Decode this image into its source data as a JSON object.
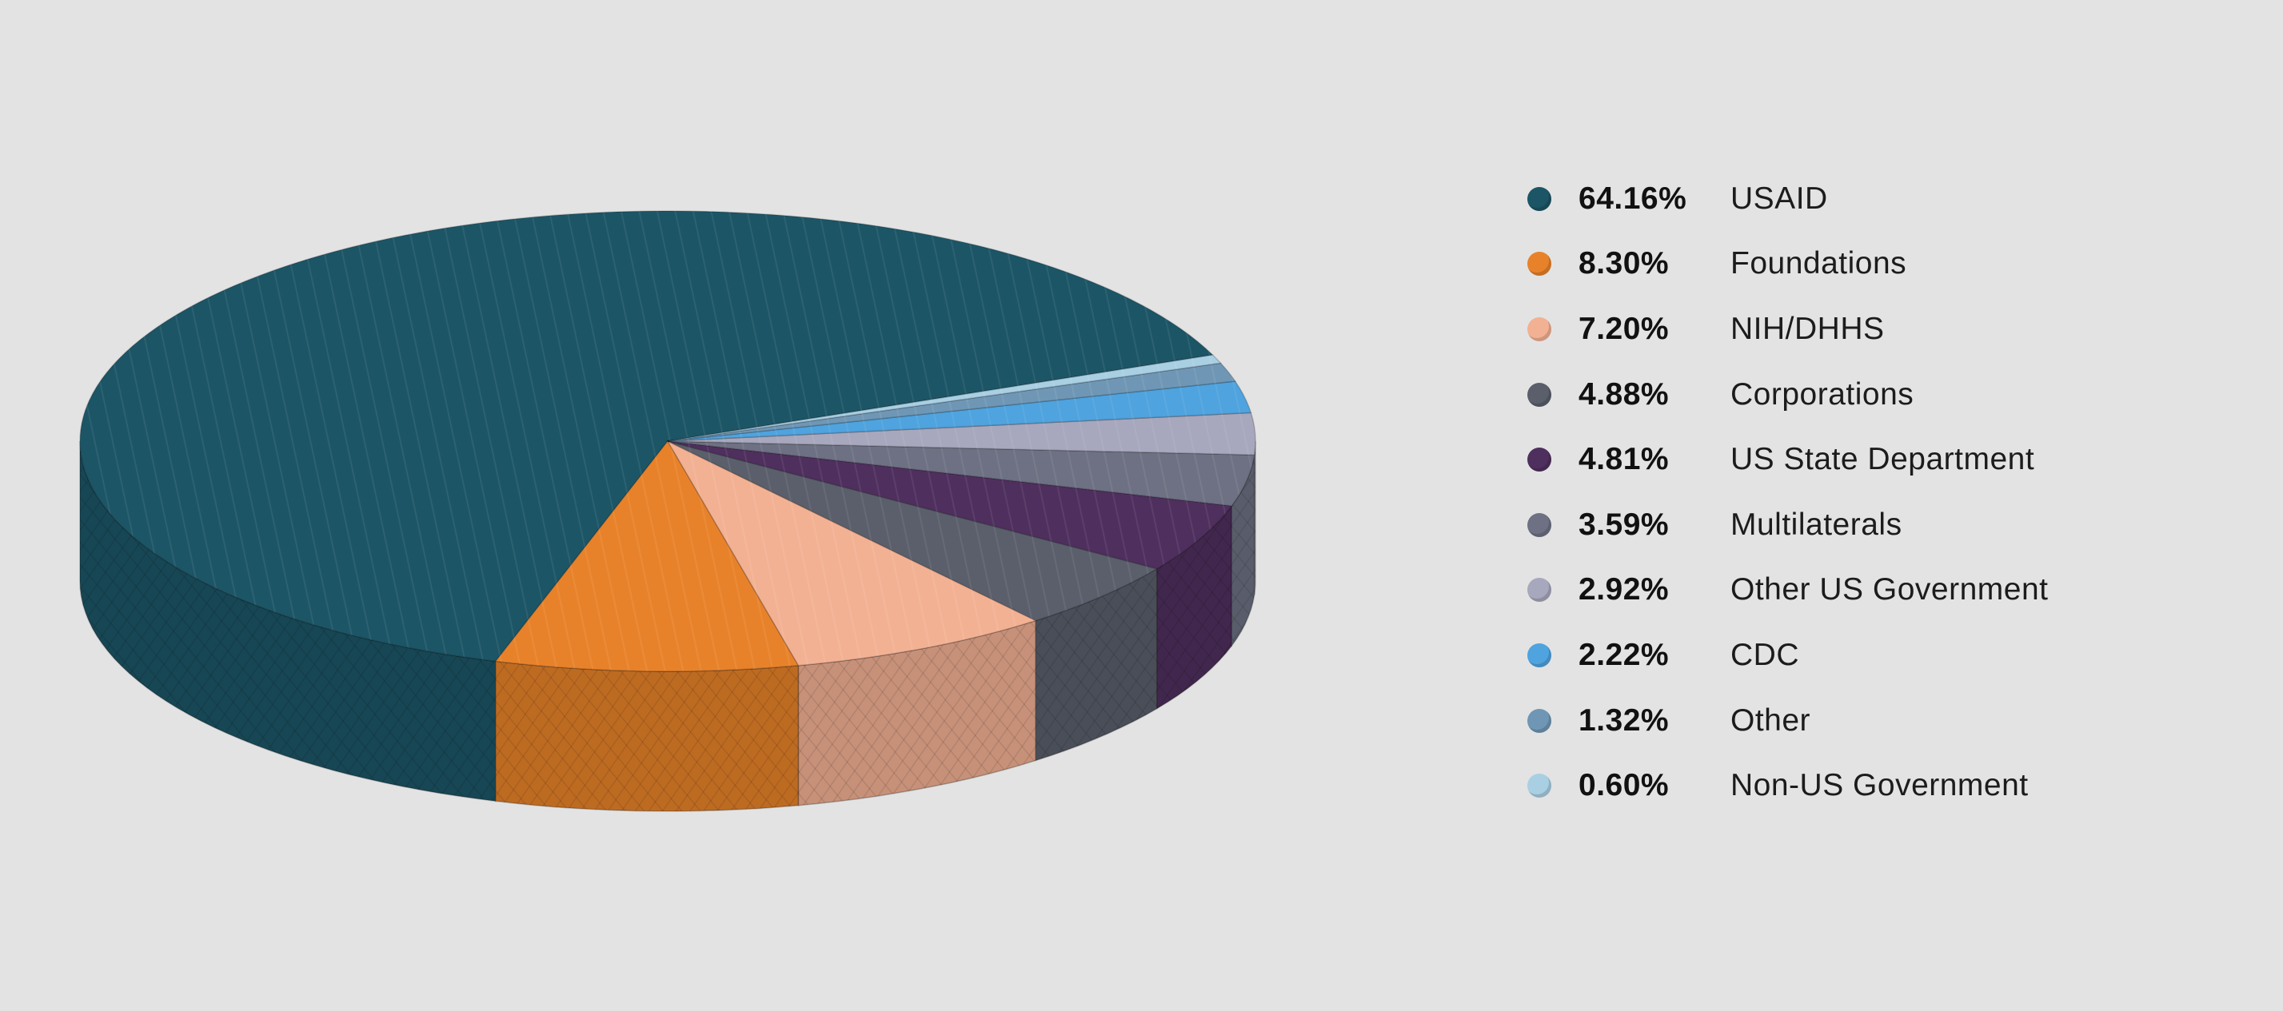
{
  "chart_data": {
    "type": "pie",
    "title": "",
    "slices": [
      {
        "label": "USAID",
        "percent_label": "64.16%",
        "value": 64.16,
        "color": "#1c5566"
      },
      {
        "label": "Foundations",
        "percent_label": "8.30%",
        "value": 8.3,
        "color": "#e8822a"
      },
      {
        "label": "NIH/DHHS",
        "percent_label": "7.20%",
        "value": 7.2,
        "color": "#f3b193"
      },
      {
        "label": "Corporations",
        "percent_label": "4.88%",
        "value": 4.88,
        "color": "#5a5f6b"
      },
      {
        "label": "US State Department",
        "percent_label": "4.81%",
        "value": 4.81,
        "color": "#4f2f5e"
      },
      {
        "label": "Multilaterals",
        "percent_label": "3.59%",
        "value": 3.59,
        "color": "#6d7183"
      },
      {
        "label": "Other US Government",
        "percent_label": "2.92%",
        "value": 2.92,
        "color": "#a7a7bd"
      },
      {
        "label": "CDC",
        "percent_label": "2.22%",
        "value": 2.22,
        "color": "#4fa3de"
      },
      {
        "label": "Other",
        "percent_label": "1.32%",
        "value": 1.32,
        "color": "#6f97b5"
      },
      {
        "label": "Non-US Government",
        "percent_label": "0.60%",
        "value": 0.6,
        "color": "#a9cfe3"
      }
    ],
    "legend_position": "right",
    "style": "3d-tilted-pie"
  }
}
